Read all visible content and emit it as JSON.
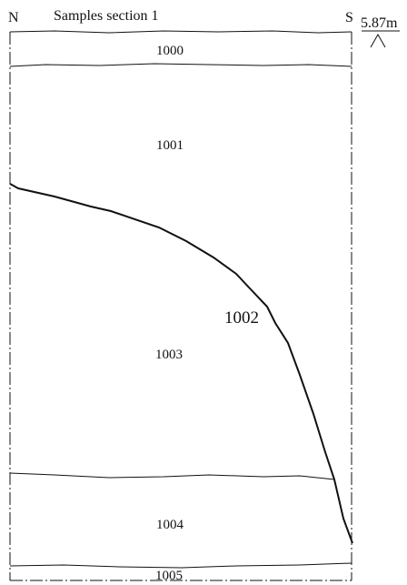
{
  "drawing": {
    "title": "Samples section 1",
    "north_label": "N",
    "south_label": "S",
    "datum": "5.87m",
    "layers": [
      {
        "id": "1000"
      },
      {
        "id": "1001"
      },
      {
        "id": "1002"
      },
      {
        "id": "1003"
      },
      {
        "id": "1004"
      },
      {
        "id": "1005"
      }
    ]
  }
}
